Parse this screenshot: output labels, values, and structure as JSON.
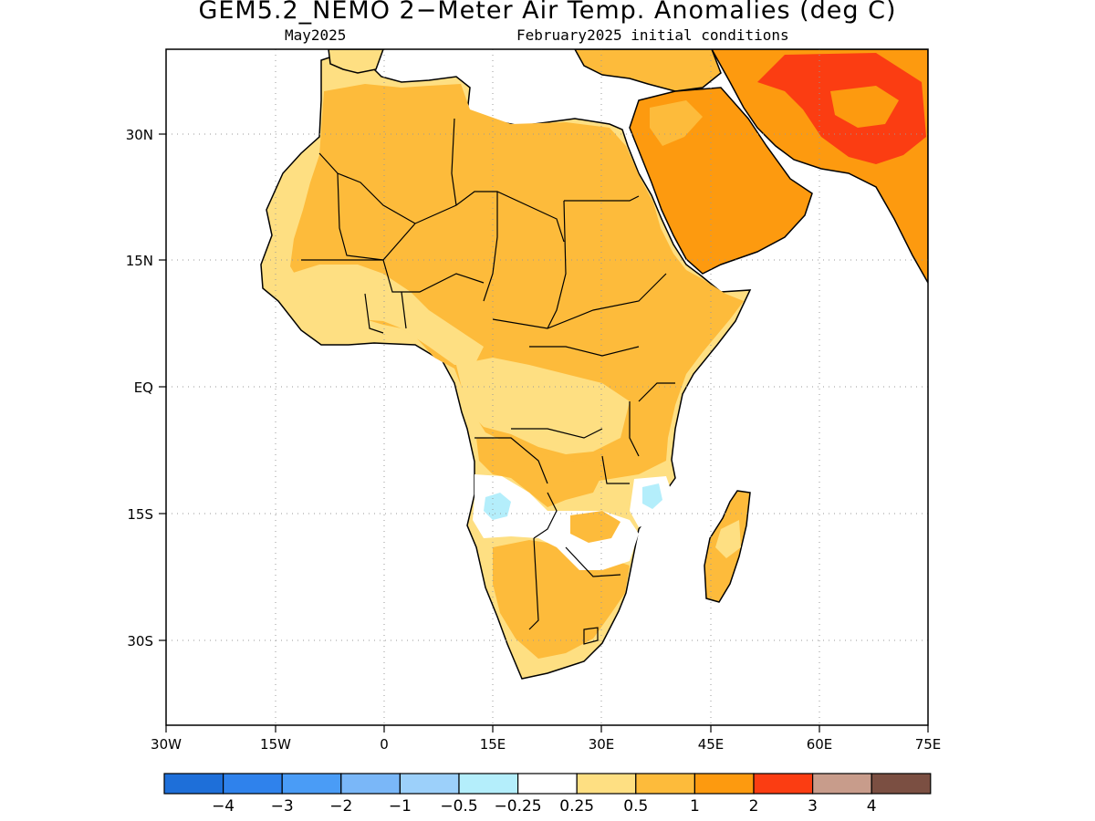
{
  "title": "GEM5.2_NEMO 2−Meter Air Temp. Anomalies (deg C)",
  "subtitle_left": "May2025",
  "subtitle_right": "February2025 initial conditions",
  "map": {
    "lon_range": [
      -30,
      75
    ],
    "lat_range": [
      -41.5,
      39.5
    ],
    "x_ticks": [
      "30W",
      "15W",
      "0",
      "15E",
      "30E",
      "45E",
      "60E",
      "75E"
    ],
    "y_ticks": [
      "30N",
      "15N",
      "EQ",
      "15S",
      "30S"
    ],
    "grid": "dotted",
    "land_fill": "#ffffff",
    "ocean_fill": "#ffffff",
    "coastline_color": "#000000"
  },
  "colorbar": {
    "colors": [
      "#1e6fd9",
      "#2f82ec",
      "#4a9cf6",
      "#7ab7f8",
      "#9cd0fa",
      "#b4eefb",
      "#ffffff",
      "#fedf82",
      "#fdbb3b",
      "#fd9a0f",
      "#fb3d12",
      "#c89c8b",
      "#7b4f42"
    ],
    "labels": [
      "−4",
      "−3",
      "−2",
      "−1",
      "−0.5",
      "−0.25",
      "0.25",
      "0.5",
      "1",
      "2",
      "3",
      "4"
    ]
  }
}
